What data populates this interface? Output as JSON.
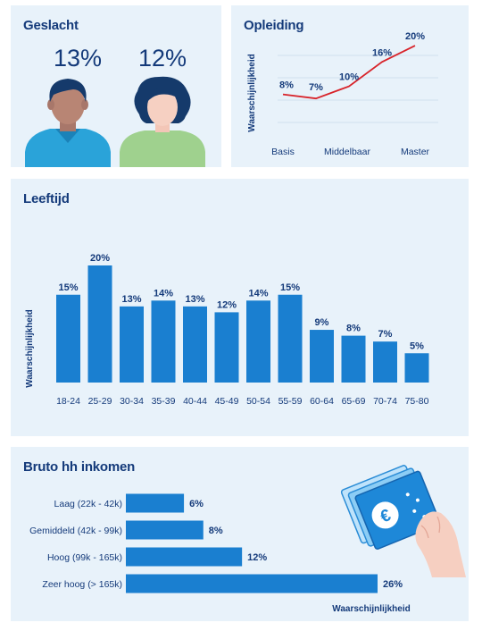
{
  "colors": {
    "panel_bg": "#e8f2fa",
    "bar": "#1a7fd0",
    "line": "#d8232a",
    "text": "#143a7a",
    "grid": "#b9cde0"
  },
  "geslacht": {
    "title": "Geslacht",
    "man_pct": "13%",
    "vrouw_pct": "12%"
  },
  "opleiding": {
    "title": "Opleiding"
  },
  "leeftijd": {
    "title": "Leeftijd"
  },
  "inkomen": {
    "title": "Bruto hh inkomen"
  },
  "chart_data": [
    {
      "type": "line",
      "title": "Opleiding",
      "ylabel": "Waarschijnlijkheid",
      "x_ticks": [
        "Basis",
        "Middelbaar",
        "Master"
      ],
      "values": [
        8,
        7,
        10,
        16,
        20
      ],
      "labels": [
        "8%",
        "7%",
        "10%",
        "16%",
        "20%"
      ],
      "ylim": [
        0,
        22
      ],
      "grid": true
    },
    {
      "type": "bar",
      "title": "Leeftijd",
      "ylabel": "Waarschijnlijkheid",
      "categories": [
        "18-24",
        "25-29",
        "30-34",
        "35-39",
        "40-44",
        "45-49",
        "50-54",
        "55-59",
        "60-64",
        "65-69",
        "70-74",
        "75-80"
      ],
      "values": [
        15,
        20,
        13,
        14,
        13,
        12,
        14,
        15,
        9,
        8,
        7,
        5
      ],
      "labels": [
        "15%",
        "20%",
        "13%",
        "14%",
        "13%",
        "12%",
        "14%",
        "15%",
        "9%",
        "8%",
        "7%",
        "5%"
      ],
      "ylim": [
        0,
        20
      ]
    },
    {
      "type": "bar",
      "orientation": "horizontal",
      "title": "Bruto hh inkomen",
      "xlabel": "Waarschijnlijkheid",
      "categories": [
        "Laag (22k - 42k)",
        "Gemiddeld (42k - 99k)",
        "Hoog (99k - 165k)",
        "Zeer hoog (> 165k)"
      ],
      "values": [
        6,
        8,
        12,
        26
      ],
      "labels": [
        "6%",
        "8%",
        "12%",
        "26%"
      ],
      "xlim": [
        0,
        26
      ]
    }
  ]
}
